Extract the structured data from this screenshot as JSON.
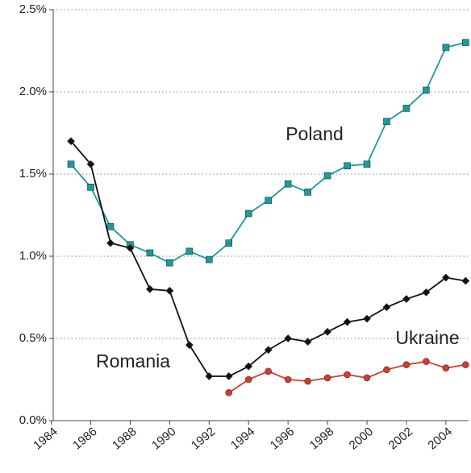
{
  "chart_data": {
    "type": "line",
    "x": [
      1985,
      1986,
      1987,
      1988,
      1989,
      1990,
      1991,
      1992,
      1993,
      1994,
      1995,
      1996,
      1997,
      1998,
      1999,
      2000,
      2001,
      2002,
      2003,
      2004,
      2005
    ],
    "series": [
      {
        "name": "Poland",
        "color": "#1a9c9a",
        "marker": "square",
        "values": [
          1.56,
          1.42,
          1.18,
          1.07,
          1.02,
          0.96,
          1.03,
          0.98,
          1.08,
          1.26,
          1.34,
          1.44,
          1.39,
          1.49,
          1.55,
          1.56,
          1.82,
          1.9,
          2.01,
          2.27,
          2.3
        ]
      },
      {
        "name": "Romania",
        "color": "#111111",
        "marker": "diamond",
        "values": [
          1.7,
          1.56,
          1.08,
          1.05,
          0.8,
          0.79,
          0.46,
          0.27,
          0.27,
          0.33,
          0.43,
          0.5,
          0.48,
          0.54,
          0.6,
          0.62,
          0.69,
          0.74,
          0.78,
          0.87,
          0.85
        ]
      },
      {
        "name": "Ukraine",
        "color": "#d93a2e",
        "marker": "circle",
        "values": [
          null,
          null,
          null,
          null,
          null,
          null,
          null,
          null,
          0.17,
          0.25,
          0.3,
          0.25,
          0.24,
          0.26,
          0.28,
          0.26,
          0.31,
          0.34,
          0.36,
          0.32,
          0.34
        ]
      }
    ],
    "xlim": [
      1984.1,
      2005.15
    ],
    "xticks": [
      1984,
      1986,
      1988,
      1990,
      1992,
      1994,
      1996,
      1998,
      2000,
      2002,
      2004
    ],
    "ylim": [
      0,
      2.5
    ],
    "yticks": [
      {
        "value": 0,
        "label": "0.0%"
      },
      {
        "value": 0.5,
        "label": "0.5%"
      },
      {
        "value": 1,
        "label": "1.0%"
      },
      {
        "value": 1.5,
        "label": "1.5%"
      },
      {
        "value": 2,
        "label": "2.0%"
      },
      {
        "value": 2.5,
        "label": "2.5%"
      }
    ],
    "grid": true
  }
}
